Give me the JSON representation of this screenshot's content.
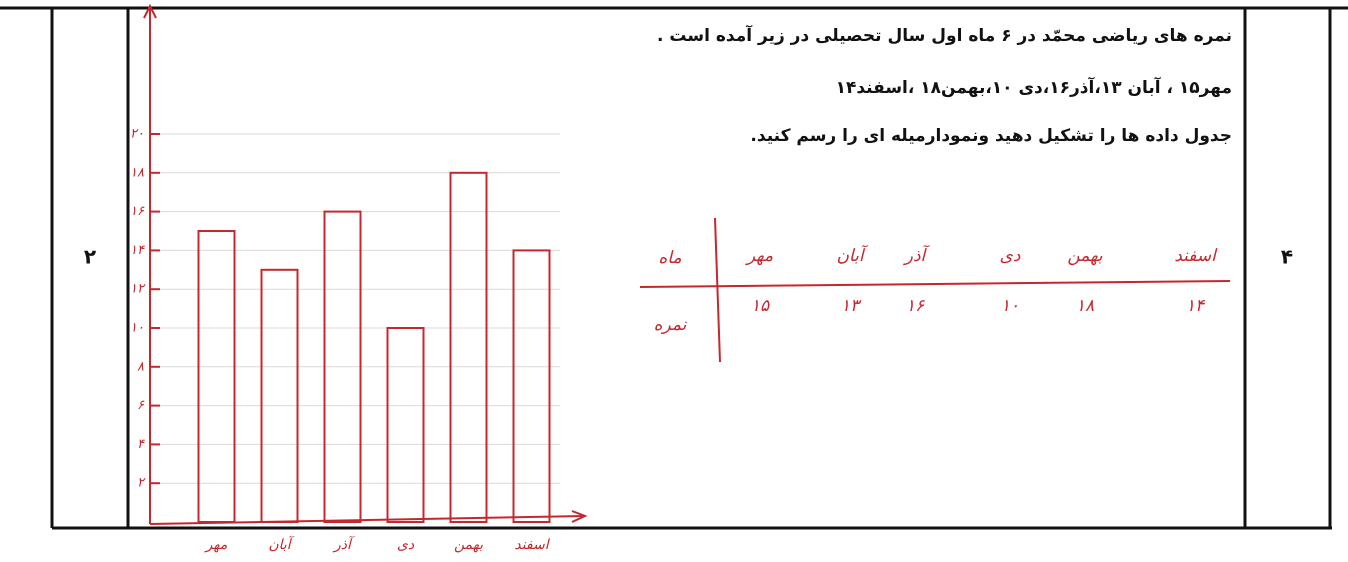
{
  "score": "۲",
  "question_number": "۴",
  "question": {
    "lines": [
      "نمره های ریاضی محمّد در ۶ ماه اول سال تحصیلی در زیر آمده است .",
      "مهر۱۵ ، آبان ۱۳،آذر۱۶،دی ۱۰،بهمن۱۸ ،اسفند۱۴",
      "جدول داده ها را تشکیل دهید ونمودارمیله ای را رسم کنید."
    ]
  },
  "answer_table": {
    "row_labels": [
      "ماه",
      "نمره"
    ],
    "months": [
      "مهر",
      "آبان",
      "آذر",
      "دی",
      "بهمن",
      "اسفند"
    ],
    "grades": [
      "۱۵",
      "۱۳",
      "۱۶",
      "۱۰",
      "۱۸",
      "۱۴"
    ]
  },
  "chart_data": {
    "type": "bar",
    "categories": [
      "مهر",
      "آبان",
      "آذر",
      "دی",
      "بهمن",
      "اسفند"
    ],
    "values": [
      15,
      13,
      16,
      10,
      18,
      14
    ],
    "color": "#c4282e",
    "ylim": [
      0,
      20
    ],
    "yticks": [
      {
        "value": 2,
        "label": "۲"
      },
      {
        "value": 4,
        "label": "۴"
      },
      {
        "value": 6,
        "label": "۶"
      },
      {
        "value": 8,
        "label": "۸"
      },
      {
        "value": 10,
        "label": "۱۰"
      },
      {
        "value": 12,
        "label": "۱۲"
      },
      {
        "value": 14,
        "label": "۱۴"
      },
      {
        "value": 16,
        "label": "۱۶"
      },
      {
        "value": 18,
        "label": "۱۸"
      },
      {
        "value": 20,
        "label": "۲۰"
      }
    ],
    "grid": true
  }
}
